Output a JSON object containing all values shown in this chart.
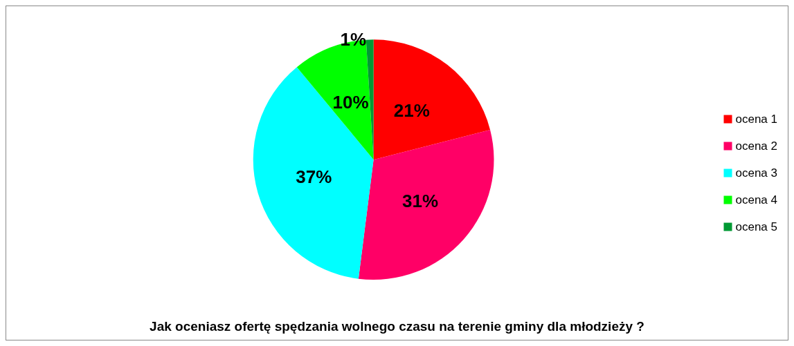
{
  "chart_data": {
    "type": "pie",
    "title": "Jak oceniasz ofertę spędzania wolnego czasu na terenie gminy dla młodzieży ?",
    "categories": [
      "ocena 1",
      "ocena 2",
      "ocena 3",
      "ocena 4",
      "ocena 5"
    ],
    "values": [
      21,
      31,
      37,
      10,
      1
    ],
    "colors": [
      "#ff0000",
      "#ff0066",
      "#00ffff",
      "#00ff00",
      "#009933"
    ],
    "value_labels": [
      "21%",
      "31%",
      "37%",
      "10%",
      "1%"
    ],
    "legend": "right"
  }
}
